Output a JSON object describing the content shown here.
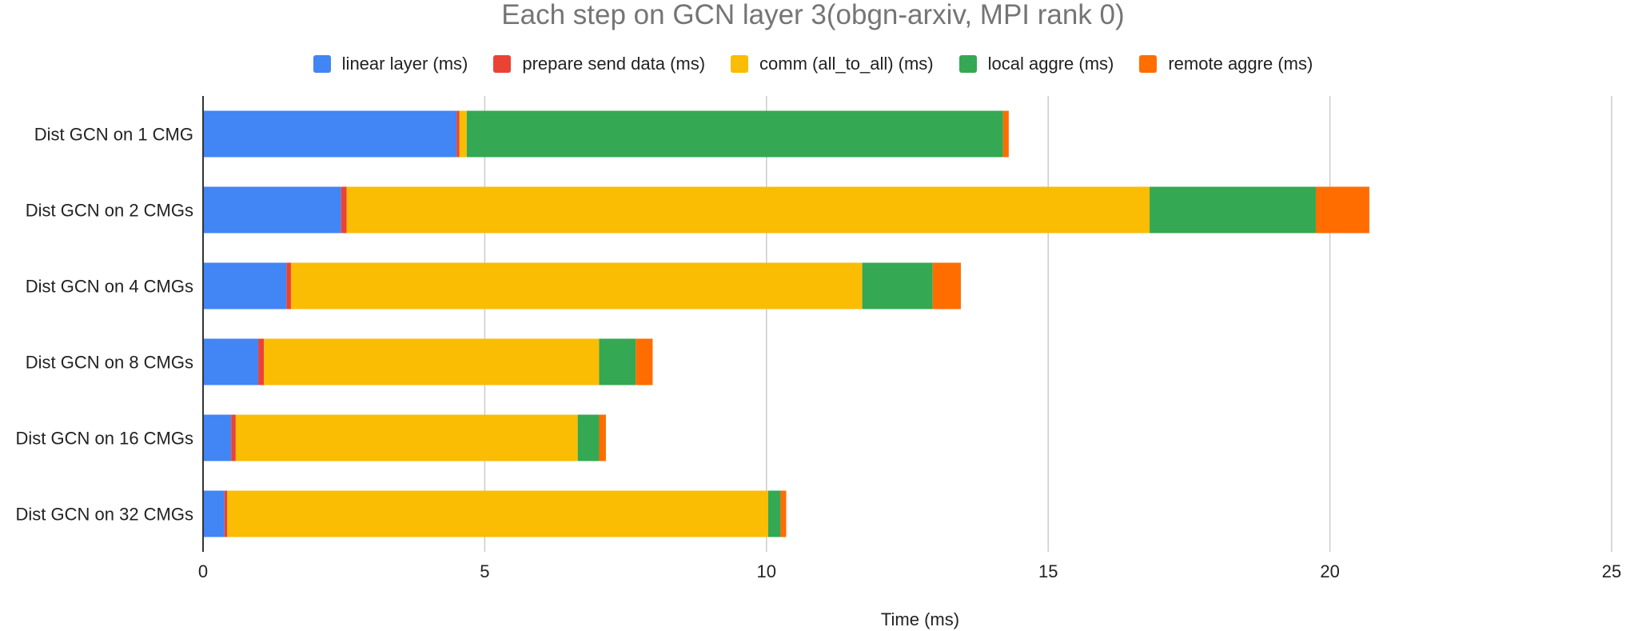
{
  "chart_data": {
    "type": "bar",
    "orientation": "horizontal",
    "stacked": true,
    "title": "Each step on GCN layer 3(obgn-arxiv, MPI rank 0)",
    "xlabel": "Time (ms)",
    "ylabel": "",
    "xlim": [
      0,
      25
    ],
    "xticks": [
      0,
      5,
      10,
      15,
      20,
      25
    ],
    "grid": true,
    "legend_position": "top",
    "categories": [
      "Dist GCN on 1 CMG",
      "Dist GCN on 2 CMGs",
      "Dist GCN on 4 CMGs",
      "Dist GCN on 8 CMGs",
      "Dist GCN on 16 CMGs",
      "Dist GCN on 32 CMGs"
    ],
    "series": [
      {
        "name": "linear layer (ms)",
        "color": "#4285F4",
        "values": [
          4.5,
          2.45,
          1.48,
          0.98,
          0.5,
          0.38
        ]
      },
      {
        "name": "prepare send data (ms)",
        "color": "#EA4335",
        "values": [
          0.05,
          0.1,
          0.08,
          0.1,
          0.08,
          0.05
        ]
      },
      {
        "name": "comm (all_to_all) (ms)",
        "color": "#FBBC04",
        "values": [
          0.13,
          14.25,
          10.14,
          5.95,
          6.07,
          9.6
        ]
      },
      {
        "name": "local aggre (ms)",
        "color": "#34A853",
        "values": [
          9.52,
          2.95,
          1.25,
          0.65,
          0.38,
          0.22
        ]
      },
      {
        "name": "remote aggre (ms)",
        "color": "#FF6D01",
        "values": [
          0.1,
          0.95,
          0.5,
          0.3,
          0.12,
          0.1
        ]
      }
    ]
  }
}
